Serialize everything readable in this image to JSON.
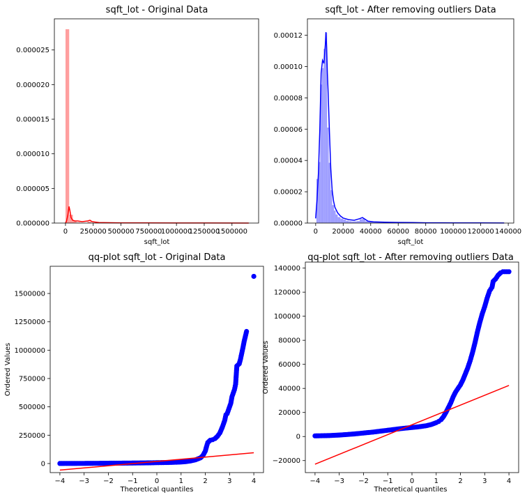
{
  "chart_data": [
    {
      "id": "p1",
      "type": "histogram",
      "title": "sqft_lot - Original Data",
      "xlabel": "sqft_lot",
      "ylabel": "",
      "xlim": [
        -100000,
        1740000
      ],
      "ylim": [
        0,
        2.95e-05
      ],
      "xticks": [
        {
          "v": 0,
          "label": "0"
        },
        {
          "v": 250000,
          "label": "250000"
        },
        {
          "v": 500000,
          "label": "500000"
        },
        {
          "v": 750000,
          "label": "750000"
        },
        {
          "v": 1000000,
          "label": "1000000"
        },
        {
          "v": 1250000,
          "label": "1250000"
        },
        {
          "v": 1500000,
          "label": "1500000"
        }
      ],
      "yticks": [
        {
          "v": 0,
          "label": "0.000000"
        },
        {
          "v": 5e-06,
          "label": "0.000005"
        },
        {
          "v": 1e-05,
          "label": "0.000010"
        },
        {
          "v": 1.5e-05,
          "label": "0.000015"
        },
        {
          "v": 2e-05,
          "label": "0.000020"
        },
        {
          "v": 2.5e-05,
          "label": "0.000025"
        }
      ],
      "color": "#ff0000",
      "bar_color": "#ff9999",
      "bins": [
        {
          "x0": 520,
          "x1": 33500,
          "h": 2.8e-05
        },
        {
          "x0": 33500,
          "x1": 66500,
          "h": 1.2e-06
        },
        {
          "x0": 66500,
          "x1": 99500,
          "h": 3e-07
        },
        {
          "x0": 99500,
          "x1": 132500,
          "h": 1e-07
        },
        {
          "x0": 198500,
          "x1": 231500,
          "h": 2e-07
        }
      ],
      "kde": [
        [
          0,
          0
        ],
        [
          10000,
          3e-07
        ],
        [
          22000,
          1.2e-06
        ],
        [
          32000,
          2.4e-06
        ],
        [
          40000,
          1.8e-06
        ],
        [
          50000,
          8e-07
        ],
        [
          65000,
          4e-07
        ],
        [
          85000,
          3e-07
        ],
        [
          110000,
          3e-07
        ],
        [
          150000,
          2e-07
        ],
        [
          200000,
          3e-07
        ],
        [
          220000,
          4e-07
        ],
        [
          240000,
          2e-07
        ],
        [
          300000,
          8e-08
        ],
        [
          400000,
          5e-08
        ],
        [
          500000,
          3e-08
        ],
        [
          700000,
          2e-08
        ],
        [
          1000000,
          1e-08
        ],
        [
          1300000,
          1e-08
        ],
        [
          1651000,
          0
        ]
      ]
    },
    {
      "id": "p2",
      "type": "histogram",
      "title": "sqft_lot - After removing outliers Data",
      "xlabel": "sqft_lot",
      "ylabel": "",
      "xlim": [
        -6000,
        144000
      ],
      "ylim": [
        0,
        0.0001305
      ],
      "xticks": [
        {
          "v": 0,
          "label": "0"
        },
        {
          "v": 20000,
          "label": "20000"
        },
        {
          "v": 40000,
          "label": "40000"
        },
        {
          "v": 60000,
          "label": "60000"
        },
        {
          "v": 80000,
          "label": "80000"
        },
        {
          "v": 100000,
          "label": "100000"
        },
        {
          "v": 120000,
          "label": "120000"
        },
        {
          "v": 140000,
          "label": "140000"
        }
      ],
      "yticks": [
        {
          "v": 0,
          "label": "0.00000"
        },
        {
          "v": 2e-05,
          "label": "0.00002"
        },
        {
          "v": 4e-05,
          "label": "0.00004"
        },
        {
          "v": 6e-05,
          "label": "0.00006"
        },
        {
          "v": 8e-05,
          "label": "0.00008"
        },
        {
          "v": 0.0001,
          "label": "0.00010"
        },
        {
          "v": 0.00012,
          "label": "0.00012"
        }
      ],
      "color": "#0000ff",
      "bar_color": "#9999ff",
      "bins": [
        {
          "x0": 520,
          "x1": 2000,
          "h": 2.82e-05
        },
        {
          "x0": 2000,
          "x1": 3300,
          "h": 3.9e-05
        },
        {
          "x0": 3300,
          "x1": 4600,
          "h": 8.85e-05
        },
        {
          "x0": 4600,
          "x1": 5800,
          "h": 9.9e-05
        },
        {
          "x0": 5800,
          "x1": 7000,
          "h": 0.0001113
        },
        {
          "x0": 7000,
          "x1": 8300,
          "h": 0.0001216
        },
        {
          "x0": 8300,
          "x1": 9500,
          "h": 6.1e-05
        },
        {
          "x0": 9500,
          "x1": 10800,
          "h": 3.85e-05
        },
        {
          "x0": 10800,
          "x1": 12000,
          "h": 2.1e-05
        },
        {
          "x0": 12000,
          "x1": 13300,
          "h": 1.15e-05
        },
        {
          "x0": 13300,
          "x1": 14500,
          "h": 8e-06
        },
        {
          "x0": 14500,
          "x1": 16000,
          "h": 5.5e-06
        },
        {
          "x0": 16000,
          "x1": 18000,
          "h": 3.8e-06
        },
        {
          "x0": 18000,
          "x1": 20000,
          "h": 2.8e-06
        },
        {
          "x0": 20000,
          "x1": 22000,
          "h": 2.2e-06
        },
        {
          "x0": 22000,
          "x1": 24000,
          "h": 1.5e-06
        },
        {
          "x0": 24000,
          "x1": 26000,
          "h": 1.2e-06
        },
        {
          "x0": 26000,
          "x1": 28000,
          "h": 1e-06
        },
        {
          "x0": 28000,
          "x1": 30000,
          "h": 1.1e-06
        },
        {
          "x0": 30000,
          "x1": 32000,
          "h": 1.3e-06
        },
        {
          "x0": 32000,
          "x1": 34000,
          "h": 2.5e-06
        },
        {
          "x0": 34000,
          "x1": 36000,
          "h": 2.8e-06
        },
        {
          "x0": 36000,
          "x1": 38000,
          "h": 1.2e-06
        },
        {
          "x0": 38000,
          "x1": 42000,
          "h": 8e-07
        },
        {
          "x0": 42000,
          "x1": 48000,
          "h": 6e-07
        },
        {
          "x0": 48000,
          "x1": 56000,
          "h": 4e-07
        },
        {
          "x0": 56000,
          "x1": 66000,
          "h": 3e-07
        },
        {
          "x0": 66000,
          "x1": 80000,
          "h": 2e-07
        },
        {
          "x0": 80000,
          "x1": 100000,
          "h": 1.5e-07
        },
        {
          "x0": 100000,
          "x1": 120000,
          "h": 1e-07
        },
        {
          "x0": 120000,
          "x1": 137000,
          "h": 1e-07
        }
      ],
      "kde": [
        [
          0,
          3e-06
        ],
        [
          1000,
          1.5e-05
        ],
        [
          2000,
          3.2e-05
        ],
        [
          3000,
          6e-05
        ],
        [
          4000,
          9.6e-05
        ],
        [
          5000,
          0.000104
        ],
        [
          6000,
          0.000102
        ],
        [
          6500,
          0.000108
        ],
        [
          7000,
          0.000114
        ],
        [
          7500,
          0.000122
        ],
        [
          8000,
          0.000112
        ],
        [
          8500,
          9.6e-05
        ],
        [
          9000,
          8.5e-05
        ],
        [
          10000,
          5.8e-05
        ],
        [
          11000,
          3.5e-05
        ],
        [
          12000,
          2.1e-05
        ],
        [
          13000,
          1.4e-05
        ],
        [
          14000,
          1e-05
        ],
        [
          16000,
          6.5e-06
        ],
        [
          18000,
          4.5e-06
        ],
        [
          20000,
          3.2e-06
        ],
        [
          24000,
          2.2e-06
        ],
        [
          28000,
          1.8e-06
        ],
        [
          32000,
          2.8e-06
        ],
        [
          34000,
          3.5e-06
        ],
        [
          36000,
          2.4e-06
        ],
        [
          38000,
          1.2e-06
        ],
        [
          42000,
          8e-07
        ],
        [
          50000,
          6e-07
        ],
        [
          60000,
          4e-07
        ],
        [
          70000,
          3e-07
        ],
        [
          80000,
          2e-07
        ],
        [
          100000,
          1.5e-07
        ],
        [
          120000,
          1e-07
        ],
        [
          137000,
          5e-08
        ]
      ]
    },
    {
      "id": "p3",
      "type": "qq-plot",
      "title": "qq-plot sqft_lot - Original Data",
      "xlabel": "Theoretical quantiles",
      "ylabel": "Ordered Values",
      "xlim": [
        -4.4,
        4.4
      ],
      "ylim": [
        -80000,
        1740000
      ],
      "xticks": [
        {
          "v": -4,
          "label": "−4"
        },
        {
          "v": -3,
          "label": "−3"
        },
        {
          "v": -2,
          "label": "−2"
        },
        {
          "v": -1,
          "label": "−1"
        },
        {
          "v": 0,
          "label": "0"
        },
        {
          "v": 1,
          "label": "1"
        },
        {
          "v": 2,
          "label": "2"
        },
        {
          "v": 3,
          "label": "3"
        },
        {
          "v": 4,
          "label": "4"
        }
      ],
      "yticks": [
        {
          "v": 0,
          "label": "0"
        },
        {
          "v": 250000,
          "label": "250000"
        },
        {
          "v": 500000,
          "label": "500000"
        },
        {
          "v": 750000,
          "label": "750000"
        },
        {
          "v": 1000000,
          "label": "1000000"
        },
        {
          "v": 1250000,
          "label": "1250000"
        },
        {
          "v": 1500000,
          "label": "1500000"
        }
      ],
      "point_color": "#0000ff",
      "line_color": "#ff0000",
      "fit_line": [
        [
          -4,
          -58000
        ],
        [
          4,
          95000
        ]
      ],
      "points": [
        [
          -4.0,
          520
        ],
        [
          -3.8,
          600
        ],
        [
          -3.6,
          700
        ],
        [
          -3.4,
          800
        ],
        [
          -3.2,
          1000
        ],
        [
          -3.0,
          1200
        ],
        [
          -2.8,
          1500
        ],
        [
          -2.6,
          1800
        ],
        [
          -2.4,
          2000
        ],
        [
          -2.2,
          2300
        ],
        [
          -2.0,
          2700
        ],
        [
          -1.8,
          3000
        ],
        [
          -1.6,
          3300
        ],
        [
          -1.4,
          3600
        ],
        [
          -1.2,
          4000
        ],
        [
          -1.0,
          4400
        ],
        [
          -0.8,
          4800
        ],
        [
          -0.6,
          5300
        ],
        [
          -0.4,
          5900
        ],
        [
          -0.2,
          6500
        ],
        [
          0.0,
          7600
        ],
        [
          0.2,
          8200
        ],
        [
          0.4,
          9000
        ],
        [
          0.6,
          10000
        ],
        [
          0.8,
          11500
        ],
        [
          1.0,
          13500
        ],
        [
          1.2,
          17000
        ],
        [
          1.4,
          23000
        ],
        [
          1.6,
          33000
        ],
        [
          1.8,
          50000
        ],
        [
          1.9,
          70000
        ],
        [
          2.0,
          110000
        ],
        [
          2.05,
          150000
        ],
        [
          2.1,
          185000
        ],
        [
          2.2,
          205000
        ],
        [
          2.3,
          210000
        ],
        [
          2.4,
          220000
        ],
        [
          2.5,
          240000
        ],
        [
          2.6,
          270000
        ],
        [
          2.7,
          320000
        ],
        [
          2.8,
          380000
        ],
        [
          2.85,
          430000
        ],
        [
          2.9,
          440000
        ],
        [
          3.0,
          500000
        ],
        [
          3.05,
          530000
        ],
        [
          3.1,
          590000
        ],
        [
          3.15,
          620000
        ],
        [
          3.2,
          650000
        ],
        [
          3.25,
          700000
        ],
        [
          3.3,
          860000
        ],
        [
          3.4,
          880000
        ],
        [
          3.45,
          920000
        ],
        [
          3.55,
          1020000
        ],
        [
          3.6,
          1075000
        ],
        [
          3.7,
          1165000
        ],
        [
          4.0,
          1651000
        ]
      ]
    },
    {
      "id": "p4",
      "type": "qq-plot",
      "title": "qq-plot sqft_lot - After removing outliers Data",
      "xlabel": "Theoretical quantiles",
      "ylabel": "Ordered Values",
      "xlim": [
        -4.4,
        4.4
      ],
      "ylim": [
        -30000,
        145000
      ],
      "xticks": [
        {
          "v": -4,
          "label": "−4"
        },
        {
          "v": -3,
          "label": "−3"
        },
        {
          "v": -2,
          "label": "−2"
        },
        {
          "v": -1,
          "label": "−1"
        },
        {
          "v": 0,
          "label": "0"
        },
        {
          "v": 1,
          "label": "1"
        },
        {
          "v": 2,
          "label": "2"
        },
        {
          "v": 3,
          "label": "3"
        },
        {
          "v": 4,
          "label": "4"
        }
      ],
      "yticks": [
        {
          "v": -20000,
          "label": "−20000"
        },
        {
          "v": 0,
          "label": "0"
        },
        {
          "v": 20000,
          "label": "20000"
        },
        {
          "v": 40000,
          "label": "40000"
        },
        {
          "v": 60000,
          "label": "60000"
        },
        {
          "v": 80000,
          "label": "80000"
        },
        {
          "v": 100000,
          "label": "100000"
        },
        {
          "v": 120000,
          "label": "120000"
        },
        {
          "v": 140000,
          "label": "140000"
        }
      ],
      "point_color": "#0000ff",
      "line_color": "#ff0000",
      "fit_line": [
        [
          -4,
          -23000
        ],
        [
          4,
          42500
        ]
      ],
      "points": [
        [
          -4.0,
          520
        ],
        [
          -3.8,
          600
        ],
        [
          -3.6,
          700
        ],
        [
          -3.4,
          800
        ],
        [
          -3.2,
          1000
        ],
        [
          -3.0,
          1200
        ],
        [
          -2.8,
          1500
        ],
        [
          -2.6,
          1800
        ],
        [
          -2.4,
          2100
        ],
        [
          -2.2,
          2500
        ],
        [
          -2.0,
          2900
        ],
        [
          -1.8,
          3300
        ],
        [
          -1.6,
          3700
        ],
        [
          -1.4,
          4200
        ],
        [
          -1.2,
          4700
        ],
        [
          -1.0,
          5200
        ],
        [
          -0.8,
          5700
        ],
        [
          -0.6,
          6200
        ],
        [
          -0.4,
          6700
        ],
        [
          -0.2,
          7100
        ],
        [
          0.0,
          7500
        ],
        [
          0.2,
          7900
        ],
        [
          0.4,
          8400
        ],
        [
          0.6,
          9000
        ],
        [
          0.8,
          10000
        ],
        [
          1.0,
          11500
        ],
        [
          1.1,
          12500
        ],
        [
          1.2,
          14000
        ],
        [
          1.3,
          16500
        ],
        [
          1.4,
          20000
        ],
        [
          1.5,
          24000
        ],
        [
          1.6,
          28000
        ],
        [
          1.7,
          33000
        ],
        [
          1.8,
          37000
        ],
        [
          1.9,
          40000
        ],
        [
          2.0,
          43000
        ],
        [
          2.1,
          47000
        ],
        [
          2.2,
          52000
        ],
        [
          2.3,
          57000
        ],
        [
          2.4,
          63000
        ],
        [
          2.5,
          70000
        ],
        [
          2.6,
          78000
        ],
        [
          2.7,
          87000
        ],
        [
          2.8,
          95000
        ],
        [
          2.9,
          102000
        ],
        [
          3.0,
          108000
        ],
        [
          3.1,
          115000
        ],
        [
          3.2,
          121000
        ],
        [
          3.3,
          124000
        ],
        [
          3.35,
          129000
        ],
        [
          3.45,
          131000
        ],
        [
          3.55,
          134000
        ],
        [
          3.65,
          136000
        ],
        [
          3.75,
          137000
        ],
        [
          4.0,
          137000
        ]
      ]
    }
  ]
}
